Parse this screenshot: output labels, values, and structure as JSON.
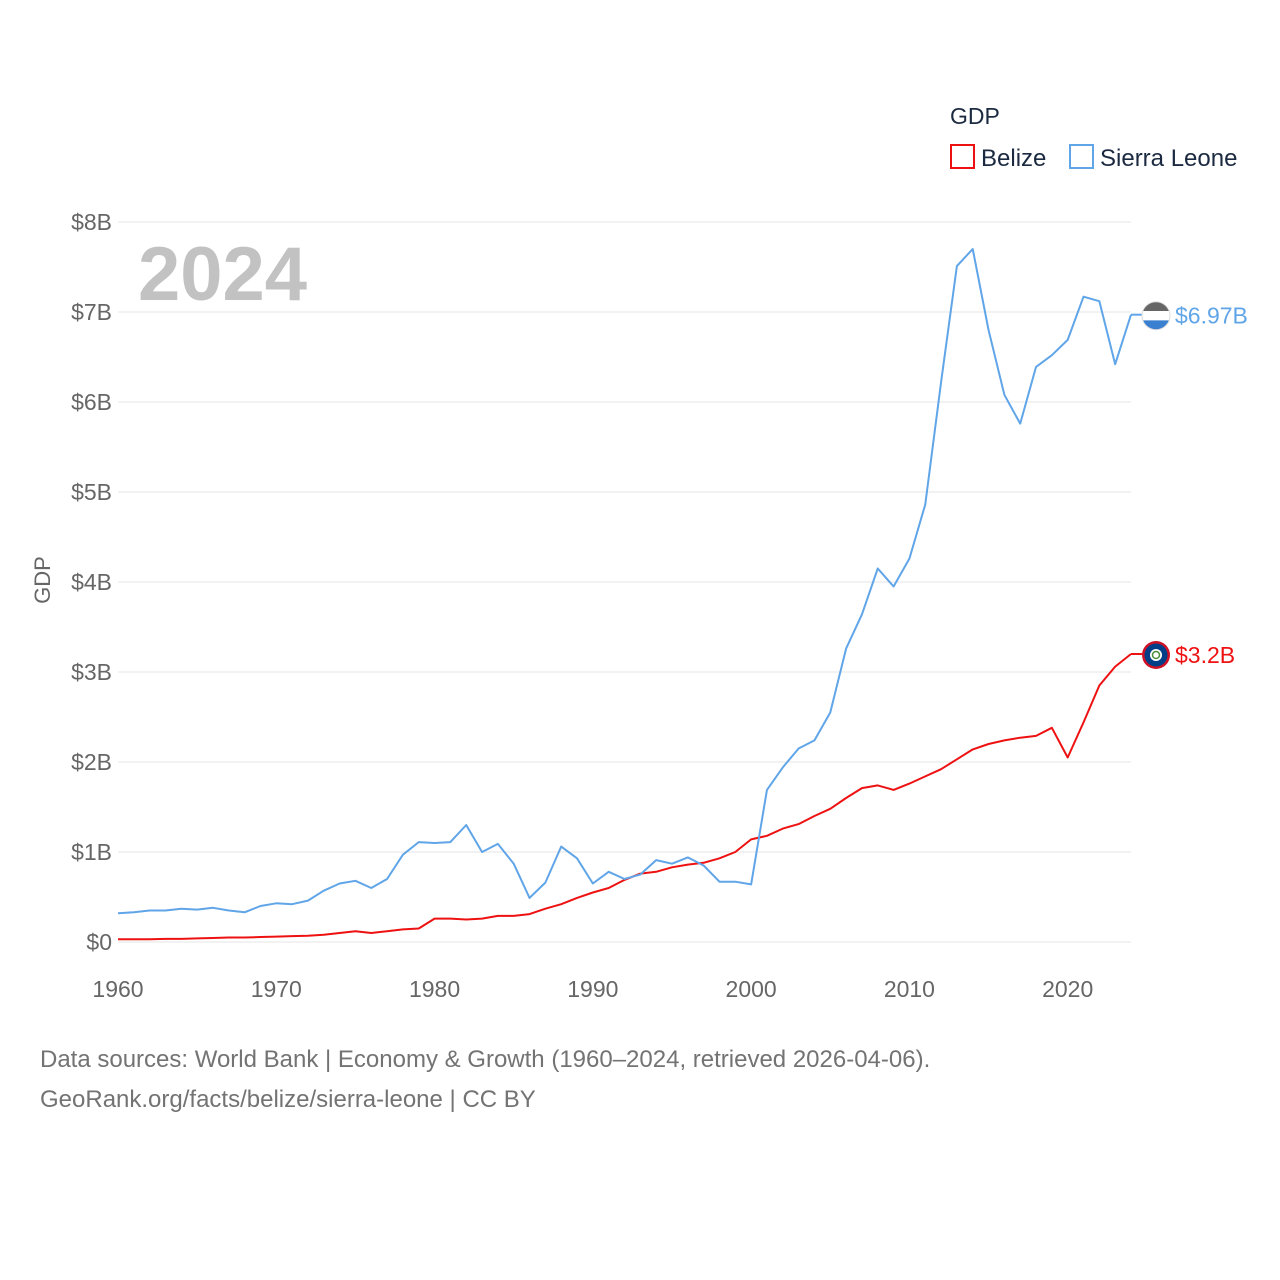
{
  "chart_data": {
    "type": "line",
    "title": "GDP",
    "year_label": "2024",
    "ylabel": "GDP",
    "xlabel": "",
    "xlim": [
      1960,
      2024
    ],
    "ylim": [
      0,
      8
    ],
    "y_unit": "billions USD",
    "x_ticks": [
      "1960",
      "1970",
      "1980",
      "1990",
      "2000",
      "2010",
      "2020"
    ],
    "y_ticks": [
      "$0",
      "$1B",
      "$2B",
      "$3B",
      "$4B",
      "$5B",
      "$6B",
      "$7B",
      "$8B"
    ],
    "grid": true,
    "legend_title": "GDP",
    "legend_position": "top-right",
    "series": [
      {
        "name": "Belize",
        "color": "#ee1111",
        "end_label": "$3.2B",
        "end_icon": "belize-flag-icon",
        "x": [
          1960,
          1961,
          1962,
          1963,
          1964,
          1965,
          1966,
          1967,
          1968,
          1969,
          1970,
          1971,
          1972,
          1973,
          1974,
          1975,
          1976,
          1977,
          1978,
          1979,
          1980,
          1981,
          1982,
          1983,
          1984,
          1985,
          1986,
          1987,
          1988,
          1989,
          1990,
          1991,
          1992,
          1993,
          1994,
          1995,
          1996,
          1997,
          1998,
          1999,
          2000,
          2001,
          2002,
          2003,
          2004,
          2005,
          2006,
          2007,
          2008,
          2009,
          2010,
          2011,
          2012,
          2013,
          2014,
          2015,
          2016,
          2017,
          2018,
          2019,
          2020,
          2021,
          2022,
          2023,
          2024
        ],
        "values": [
          0.03,
          0.03,
          0.03,
          0.035,
          0.035,
          0.04,
          0.045,
          0.05,
          0.05,
          0.055,
          0.06,
          0.065,
          0.07,
          0.08,
          0.1,
          0.12,
          0.1,
          0.12,
          0.14,
          0.15,
          0.26,
          0.26,
          0.25,
          0.26,
          0.29,
          0.29,
          0.31,
          0.37,
          0.42,
          0.49,
          0.55,
          0.6,
          0.69,
          0.76,
          0.78,
          0.83,
          0.86,
          0.88,
          0.93,
          1.0,
          1.14,
          1.18,
          1.26,
          1.31,
          1.4,
          1.48,
          1.6,
          1.71,
          1.74,
          1.69,
          1.76,
          1.84,
          1.92,
          2.03,
          2.14,
          2.2,
          2.24,
          2.27,
          2.29,
          2.38,
          2.05,
          2.44,
          2.85,
          3.06,
          3.2
        ]
      },
      {
        "name": "Sierra Leone",
        "color": "#60a5e8",
        "end_label": "$6.97B",
        "end_icon": "sierra-leone-flag-icon",
        "x": [
          1960,
          1961,
          1962,
          1963,
          1964,
          1965,
          1966,
          1967,
          1968,
          1969,
          1970,
          1971,
          1972,
          1973,
          1974,
          1975,
          1976,
          1977,
          1978,
          1979,
          1980,
          1981,
          1982,
          1983,
          1984,
          1985,
          1986,
          1987,
          1988,
          1989,
          1990,
          1991,
          1992,
          1993,
          1994,
          1995,
          1996,
          1997,
          1998,
          1999,
          2000,
          2001,
          2002,
          2003,
          2004,
          2005,
          2006,
          2007,
          2008,
          2009,
          2010,
          2011,
          2012,
          2013,
          2014,
          2015,
          2016,
          2017,
          2018,
          2019,
          2020,
          2021,
          2022,
          2023,
          2024
        ],
        "values": [
          0.32,
          0.33,
          0.35,
          0.35,
          0.37,
          0.36,
          0.38,
          0.35,
          0.33,
          0.4,
          0.43,
          0.42,
          0.46,
          0.57,
          0.65,
          0.68,
          0.6,
          0.7,
          0.97,
          1.11,
          1.1,
          1.11,
          1.3,
          1.0,
          1.09,
          0.87,
          0.49,
          0.66,
          1.06,
          0.93,
          0.65,
          0.78,
          0.7,
          0.75,
          0.91,
          0.87,
          0.94,
          0.85,
          0.67,
          0.67,
          0.64,
          1.69,
          1.94,
          2.15,
          2.24,
          2.55,
          3.26,
          3.64,
          4.15,
          3.95,
          4.26,
          4.86,
          6.22,
          7.51,
          7.7,
          6.8,
          6.08,
          5.76,
          6.39,
          6.52,
          6.69,
          7.17,
          7.12,
          6.42,
          6.97
        ]
      }
    ]
  },
  "footer": {
    "line1": "Data sources: World Bank | Economy & Growth (1960–2024, retrieved 2026-04-06).",
    "line2": "GeoRank.org/facts/belize/sierra-leone | CC BY"
  }
}
